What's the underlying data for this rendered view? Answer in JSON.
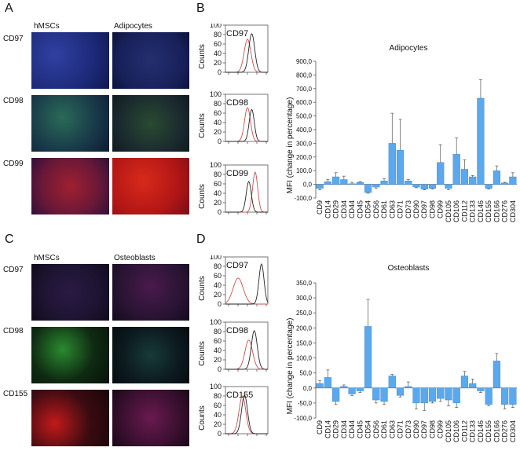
{
  "panels": {
    "A": "A",
    "B": "B",
    "C": "C",
    "D": "D"
  },
  "colors": {
    "bar": "#5aa9ee",
    "black_curve": "#222222",
    "red_curve": "#c85050"
  },
  "sectionA": {
    "col1": "hMSCs",
    "col2": "Adipocytes",
    "rows": [
      {
        "label": "CD97",
        "left": "#1d2a7a",
        "right": "#172058"
      },
      {
        "label": "CD98",
        "left": "#183848",
        "right": "#1a2a2f"
      },
      {
        "label": "CD99",
        "left": "#6a1838",
        "right": "#b21616"
      }
    ]
  },
  "sectionC": {
    "col1": "hMSCs",
    "col2": "Osteoblasts",
    "rows": [
      {
        "label": "CD97",
        "left": "#1d1431",
        "right": "#2a1434"
      },
      {
        "label": "CD98",
        "left": "#0f2a12",
        "right": "#0c1a20"
      },
      {
        "label": "CD155",
        "left": "#3a0b12",
        "right": "#3a1030"
      }
    ]
  },
  "histB": {
    "ylabel": "Counts",
    "ticks": [
      "0",
      "20",
      "40",
      "60",
      "80",
      "100"
    ],
    "labels": [
      "CD97",
      "CD98",
      "CD99"
    ]
  },
  "histD": {
    "ylabel": "Counts",
    "ticks": [
      "0",
      "20",
      "40",
      "60",
      "80",
      "100"
    ],
    "labels": [
      "CD97",
      "CD98",
      "CD155"
    ]
  },
  "chart_data": [
    {
      "type": "bar",
      "title": "Adipocytes",
      "ylabel": "MFI (change in percentage)",
      "xlabel": "",
      "ylim": [
        -100,
        900
      ],
      "yticks": [
        "-100,0",
        "0,0",
        "100,0",
        "200,0",
        "300,0",
        "400,0",
        "500,0",
        "600,0",
        "700,0",
        "800,0",
        "900,0"
      ],
      "categories": [
        "CD9",
        "CD14",
        "CD29",
        "CD34",
        "CD44",
        "CD45",
        "CD54",
        "CD56",
        "CD61",
        "CD63",
        "CD71",
        "CD73",
        "CD90",
        "CD97",
        "CD98",
        "CD99",
        "CD105",
        "CD106",
        "CD112",
        "CD133",
        "CD146",
        "CD155",
        "CD166",
        "CD276",
        "CD304"
      ],
      "values": [
        -30,
        20,
        55,
        35,
        5,
        15,
        -60,
        -20,
        25,
        300,
        250,
        25,
        -20,
        -35,
        -30,
        160,
        -30,
        220,
        110,
        55,
        630,
        -30,
        100,
        10,
        55
      ],
      "errors": [
        10,
        15,
        30,
        25,
        10,
        5,
        5,
        10,
        15,
        220,
        225,
        10,
        5,
        5,
        5,
        130,
        10,
        120,
        70,
        10,
        135,
        5,
        35,
        5,
        30
      ]
    },
    {
      "type": "bar",
      "title": "Osteoblasts",
      "ylabel": "MFI (change in percentage)",
      "xlabel": "",
      "ylim": [
        -100,
        350
      ],
      "yticks": [
        "-100,0",
        "-50,0",
        "0,0",
        "50,0",
        "100,0",
        "150,0",
        "200,0",
        "250,0",
        "300,0",
        "350,0"
      ],
      "categories": [
        "CD9",
        "CD14",
        "CD29",
        "CD34",
        "CD44",
        "CD45",
        "CD54",
        "CD56",
        "CD61",
        "CD63",
        "CD71",
        "CD73",
        "CD90",
        "CD97",
        "CD98",
        "CD99",
        "CD105",
        "CD106",
        "CD112",
        "CD133",
        "CD146",
        "CD155",
        "CD166",
        "CD276",
        "CD304"
      ],
      "values": [
        15,
        35,
        -45,
        5,
        -20,
        -10,
        205,
        -40,
        -45,
        40,
        -25,
        5,
        -50,
        -50,
        -45,
        -35,
        -40,
        -50,
        40,
        15,
        -10,
        -55,
        90,
        -55,
        -55
      ],
      "errors": [
        10,
        25,
        10,
        5,
        5,
        5,
        90,
        10,
        10,
        5,
        5,
        15,
        20,
        25,
        5,
        10,
        20,
        15,
        15,
        15,
        5,
        5,
        25,
        15,
        10
      ]
    }
  ]
}
